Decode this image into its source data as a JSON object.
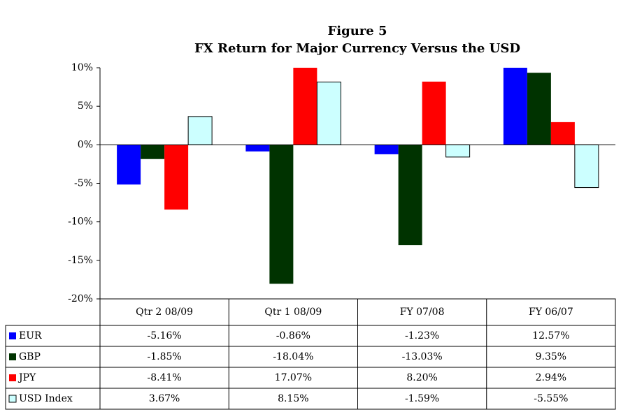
{
  "chart_data": {
    "type": "bar",
    "title": "Figure 5",
    "subtitle": "FX Return for Major Currency Versus the USD",
    "categories": [
      "Qtr 2 08/09",
      "Qtr 1 08/09",
      "FY 07/08",
      "FY 06/07"
    ],
    "series": [
      {
        "name": "EUR",
        "color": "#0000ff",
        "values": [
          -5.16,
          -0.86,
          -1.23,
          12.57
        ],
        "value_labels": [
          "-5.16%",
          "-0.86%",
          "-1.23%",
          "12.57%"
        ]
      },
      {
        "name": "GBP",
        "color": "#003300",
        "values": [
          -1.85,
          -18.04,
          -13.03,
          9.35
        ],
        "value_labels": [
          "-1.85%",
          "-18.04%",
          "-13.03%",
          "9.35%"
        ]
      },
      {
        "name": "JPY",
        "color": "#ff0000",
        "values": [
          -8.41,
          17.07,
          8.2,
          2.94
        ],
        "value_labels": [
          "-8.41%",
          "17.07%",
          "8.20%",
          "2.94%"
        ]
      },
      {
        "name": "USD Index",
        "color": "#ccffff",
        "values": [
          3.67,
          8.15,
          -1.59,
          -5.55
        ],
        "value_labels": [
          "3.67%",
          "8.15%",
          "-1.59%",
          "-5.55%"
        ]
      }
    ],
    "ylim": [
      -20,
      10
    ],
    "yticks": [
      {
        "value": -20,
        "label": "-20%"
      },
      {
        "value": -15,
        "label": "-15%"
      },
      {
        "value": -10,
        "label": "-10%"
      },
      {
        "value": -5,
        "label": "-5%"
      },
      {
        "value": 0,
        "label": "0%"
      },
      {
        "value": 5,
        "label": "5%"
      },
      {
        "value": 10,
        "label": "10%"
      }
    ],
    "grid": false
  }
}
